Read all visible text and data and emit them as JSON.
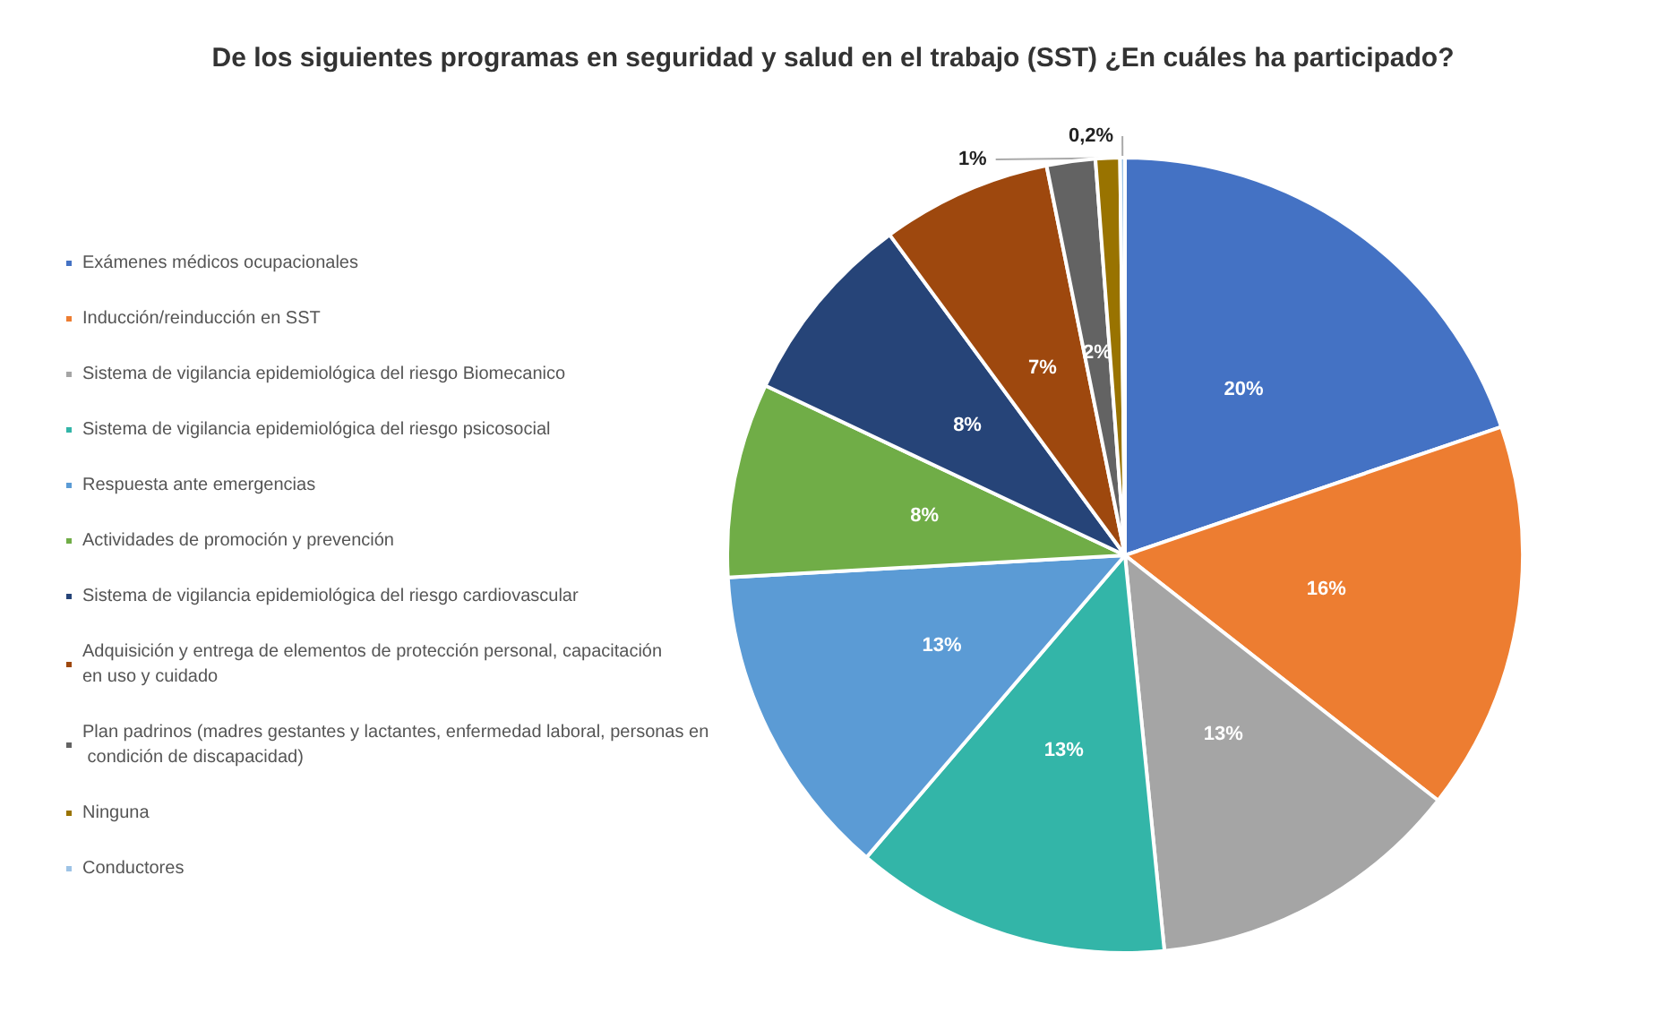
{
  "chart_data": {
    "type": "pie",
    "title": "De los siguientes programas en seguridad y salud en el trabajo (SST) ¿En cuáles ha participado?",
    "categories": [
      "Exámenes médicos ocupacionales",
      "Inducción/reinducción en SST",
      "Sistema de vigilancia epidemiológica del riesgo Biomecanico",
      "Sistema de vigilancia epidemiológica del riesgo psicosocial",
      "Respuesta ante emergencias",
      "Actividades de promoción y prevención",
      "Sistema de vigilancia epidemiológica del riesgo cardiovascular",
      "Adquisición y entrega de elementos de protección personal, capacitación en uso y cuidado",
      "Plan padrinos (madres gestantes y lactantes, enfermedad laboral, personas en condición de discapacidad)",
      "Ninguna",
      "Conductores"
    ],
    "values": [
      20,
      16,
      13,
      13,
      13,
      8,
      8,
      7,
      2,
      1,
      0.2
    ],
    "value_labels": [
      "20%",
      "16%",
      "13%",
      "13%",
      "13%",
      "8%",
      "8%",
      "7%",
      "2%",
      "1%",
      "0,2%"
    ],
    "colors": [
      "#4472c4",
      "#ed7d31",
      "#a5a5a5",
      "#33b5a8",
      "#5b9bd5",
      "#70ad47",
      "#264478",
      "#9e480e",
      "#636363",
      "#997300",
      "#9dc3e6"
    ],
    "legend": "left"
  }
}
